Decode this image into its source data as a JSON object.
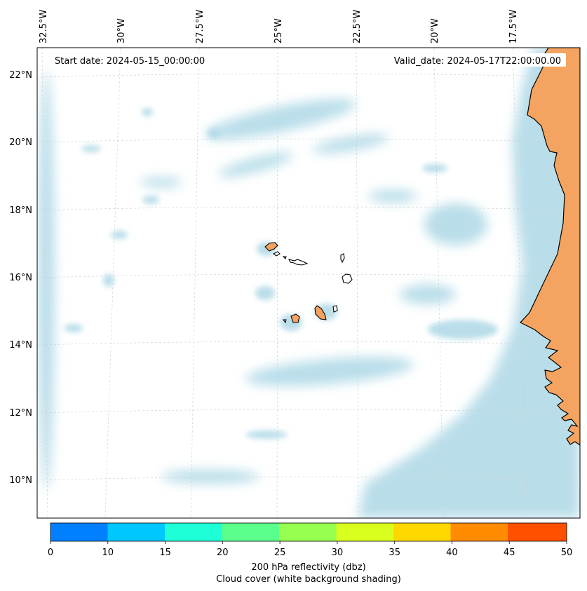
{
  "map": {
    "start_date_label": "Start date: 2024-05-15_00:00:00",
    "valid_date_label": "Valid_date: 2024-05-17T22:00:00.00",
    "lon_labels": [
      "32.5°W",
      "30°W",
      "27.5°W",
      "25°W",
      "22.5°W",
      "20°W",
      "17.5°W"
    ],
    "lat_labels": [
      "22°N",
      "20°N",
      "18°N",
      "16°N",
      "14°N",
      "12°N",
      "10°N"
    ],
    "colors": {
      "land": "#f4a460",
      "cloud": "#add8e6",
      "coast": "#000000",
      "grid": "#cccccc"
    }
  },
  "colorbar": {
    "ticks": [
      "0",
      "10",
      "15",
      "20",
      "25",
      "30",
      "35",
      "40",
      "45",
      "50"
    ],
    "colors": [
      "#0080ff",
      "#00c8ff",
      "#1effd8",
      "#5aff8c",
      "#96ff50",
      "#d8ff1e",
      "#ffd800",
      "#ff8c00",
      "#ff5000"
    ],
    "title_line1": "200 hPa reflectivity (dbz)",
    "title_line2": "Cloud cover (white background shading)"
  }
}
